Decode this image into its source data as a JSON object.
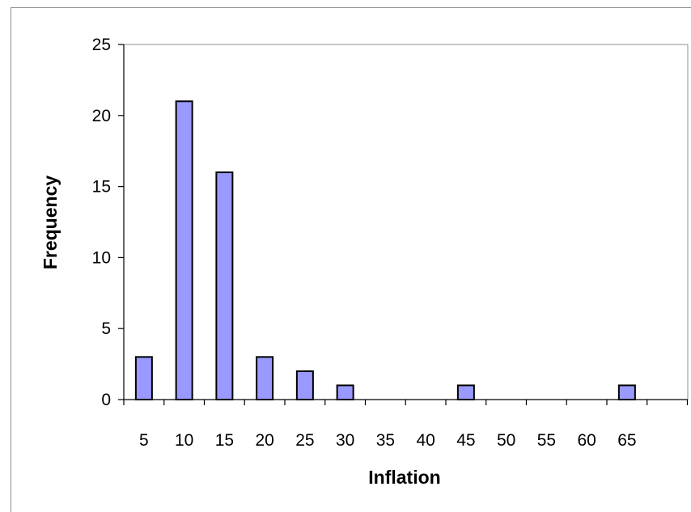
{
  "chart_data": {
    "type": "bar",
    "title": "",
    "xlabel": "Inflation",
    "ylabel": "Frequency",
    "categories": [
      "5",
      "10",
      "15",
      "20",
      "25",
      "30",
      "35",
      "40",
      "45",
      "50",
      "55",
      "60",
      "65"
    ],
    "values": [
      3,
      21,
      16,
      3,
      2,
      1,
      0,
      0,
      1,
      0,
      0,
      0,
      1
    ],
    "ylim": [
      0,
      25
    ],
    "yticks": [
      "0",
      "5",
      "10",
      "15",
      "20",
      "25"
    ],
    "grid": false,
    "legend": "none",
    "bar_color": "#9999ff",
    "bar_edge_color": "#000000"
  }
}
